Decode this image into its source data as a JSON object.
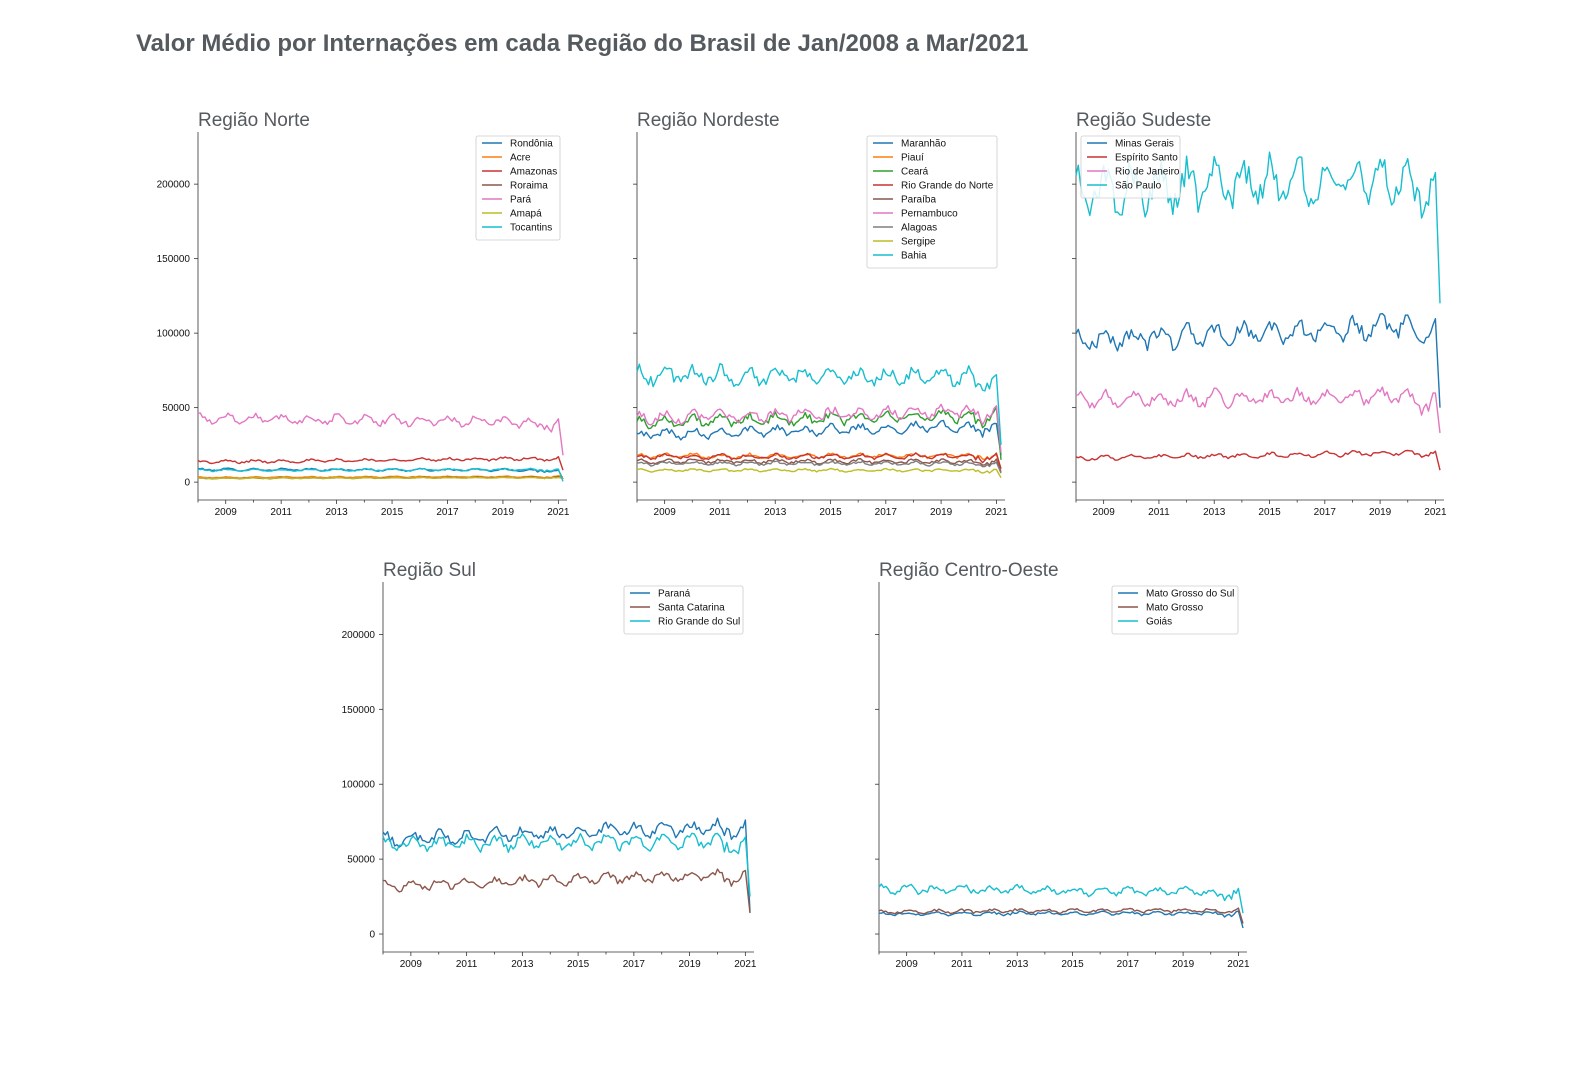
{
  "title": "Valor Médio por Internações em cada Região do Brasil de Jan/2008 a Mar/2021",
  "chart_data": [
    {
      "type": "line",
      "title": "Região Norte",
      "x_range": [
        "2008-01",
        "2021-03"
      ],
      "ylim": [
        -12000,
        235000
      ],
      "yticks": [
        0,
        50000,
        100000,
        150000,
        200000
      ],
      "xticks": [
        "2009",
        "2011",
        "2013",
        "2015",
        "2017",
        "2019",
        "2021"
      ],
      "legend": "upper right",
      "series": [
        {
          "name": "Rondônia",
          "color": "#1f77b4",
          "base": 8500,
          "amp": 600,
          "end": 8000,
          "final": 2000
        },
        {
          "name": "Acre",
          "color": "#ff7f0e",
          "base": 3200,
          "amp": 300,
          "end": 3800,
          "final": 3500
        },
        {
          "name": "Amazonas",
          "color": "#c83232",
          "base": 13500,
          "amp": 800,
          "end": 16000,
          "final": 8000
        },
        {
          "name": "Roraima",
          "color": "#8c564b",
          "base": 2500,
          "amp": 250,
          "end": 3200,
          "final": 2500
        },
        {
          "name": "Pará",
          "color": "#e377c2",
          "base": 43000,
          "amp": 2500,
          "end": 40000,
          "final": 18000
        },
        {
          "name": "Amapá",
          "color": "#bcbd22",
          "base": 2600,
          "amp": 200,
          "end": 3000,
          "final": 2500
        },
        {
          "name": "Tocantins",
          "color": "#17becf",
          "base": 8000,
          "amp": 500,
          "end": 8500,
          "final": 500
        }
      ]
    },
    {
      "type": "line",
      "title": "Região Nordeste",
      "x_range": [
        "2008-01",
        "2021-03"
      ],
      "ylim": [
        -12000,
        235000
      ],
      "yticks": [
        0,
        50000,
        100000,
        150000,
        200000
      ],
      "xticks": [
        "2009",
        "2011",
        "2013",
        "2015",
        "2017",
        "2019",
        "2021"
      ],
      "legend": "upper right",
      "series": [
        {
          "name": "Maranhão",
          "color": "#1f77b4",
          "base": 32000,
          "amp": 2500,
          "end": 38000,
          "final": 18000
        },
        {
          "name": "Piauí",
          "color": "#ff7f0e",
          "base": 17500,
          "amp": 1200,
          "end": 18000,
          "final": 9000
        },
        {
          "name": "Ceará",
          "color": "#2ca02c",
          "base": 40000,
          "amp": 3000,
          "end": 45000,
          "final": 15000
        },
        {
          "name": "Rio Grande do Norte",
          "color": "#c83232",
          "base": 17000,
          "amp": 1300,
          "end": 17500,
          "final": 9000
        },
        {
          "name": "Paraíba",
          "color": "#8c564b",
          "base": 14000,
          "amp": 1100,
          "end": 14000,
          "final": 7000
        },
        {
          "name": "Pernambuco",
          "color": "#e377c2",
          "base": 43000,
          "amp": 3000,
          "end": 48000,
          "final": 20000
        },
        {
          "name": "Alagoas",
          "color": "#7f7f7f",
          "base": 12500,
          "amp": 1000,
          "end": 12500,
          "final": 6000
        },
        {
          "name": "Sergipe",
          "color": "#bcbd22",
          "base": 8000,
          "amp": 700,
          "end": 8000,
          "final": 3000
        },
        {
          "name": "Bahia",
          "color": "#17becf",
          "base": 72000,
          "amp": 4500,
          "end": 70000,
          "final": 25000
        }
      ]
    },
    {
      "type": "line",
      "title": "Região Sudeste",
      "x_range": [
        "2008-01",
        "2021-03"
      ],
      "ylim": [
        -12000,
        235000
      ],
      "yticks": [
        0,
        50000,
        100000,
        150000,
        200000
      ],
      "xticks": [
        "2009",
        "2011",
        "2013",
        "2015",
        "2017",
        "2019",
        "2021"
      ],
      "legend": "upper left",
      "series": [
        {
          "name": "Minas Gerais",
          "color": "#1f77b4",
          "base": 95000,
          "amp": 5500,
          "end": 105000,
          "final": 50000
        },
        {
          "name": "Espírito Santo",
          "color": "#c83232",
          "base": 16000,
          "amp": 1200,
          "end": 20000,
          "final": 8000
        },
        {
          "name": "Rio de Janeiro",
          "color": "#e377c2",
          "base": 55000,
          "amp": 4000,
          "end": 58000,
          "final": 33000
        },
        {
          "name": "São Paulo",
          "color": "#17becf",
          "base": 195000,
          "amp": 12000,
          "end": 205000,
          "final": 120000
        }
      ]
    },
    {
      "type": "line",
      "title": "Região Sul",
      "x_range": [
        "2008-01",
        "2021-03"
      ],
      "ylim": [
        -12000,
        235000
      ],
      "yticks": [
        0,
        50000,
        100000,
        150000,
        200000
      ],
      "xticks": [
        "2009",
        "2011",
        "2013",
        "2015",
        "2017",
        "2019",
        "2021"
      ],
      "legend": "upper right",
      "series": [
        {
          "name": "Paraná",
          "color": "#1f77b4",
          "base": 63000,
          "amp": 3500,
          "end": 72000,
          "final": 15000
        },
        {
          "name": "Santa Catarina",
          "color": "#8c564b",
          "base": 32000,
          "amp": 2500,
          "end": 40000,
          "final": 14000
        },
        {
          "name": "Rio Grande do Sul",
          "color": "#17becf",
          "base": 60000,
          "amp": 3500,
          "end": 62000,
          "final": 25000
        }
      ]
    },
    {
      "type": "line",
      "title": "Região Centro-Oeste",
      "x_range": [
        "2008-01",
        "2021-03"
      ],
      "ylim": [
        -12000,
        235000
      ],
      "yticks": [
        0,
        50000,
        100000,
        150000,
        200000
      ],
      "xticks": [
        "2009",
        "2011",
        "2013",
        "2015",
        "2017",
        "2019",
        "2021"
      ],
      "legend": "upper right",
      "series": [
        {
          "name": "Mato Grosso do Sul",
          "color": "#1f77b4",
          "base": 13500,
          "amp": 900,
          "end": 14000,
          "final": 4000
        },
        {
          "name": "Mato Grosso",
          "color": "#8c564b",
          "base": 15000,
          "amp": 1000,
          "end": 16000,
          "final": 7000
        },
        {
          "name": "Goiás",
          "color": "#17becf",
          "base": 30000,
          "amp": 2200,
          "end": 28000,
          "final": 14000
        }
      ]
    }
  ]
}
